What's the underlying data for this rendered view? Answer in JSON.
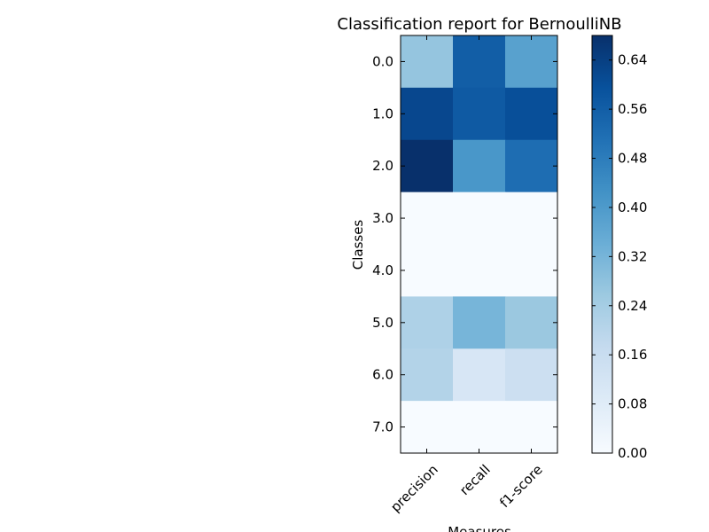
{
  "chart_data": {
    "type": "heatmap",
    "title": "Classification report for BernoulliNB",
    "xlabel": "Measures",
    "ylabel": "Classes",
    "x_categories": [
      "precision",
      "recall",
      "f1-score"
    ],
    "y_categories": [
      "0.0",
      "1.0",
      "2.0",
      "3.0",
      "4.0",
      "5.0",
      "6.0",
      "7.0"
    ],
    "values": [
      [
        0.27,
        0.56,
        0.38
      ],
      [
        0.62,
        0.57,
        0.6
      ],
      [
        0.68,
        0.41,
        0.52
      ],
      [
        0.0,
        0.0,
        0.0
      ],
      [
        0.0,
        0.0,
        0.0
      ],
      [
        0.22,
        0.32,
        0.26
      ],
      [
        0.21,
        0.11,
        0.15
      ],
      [
        0.0,
        0.0,
        0.0
      ]
    ],
    "colormap": "Blues",
    "colorbar": {
      "range": [
        0.0,
        0.68
      ],
      "ticks": [
        "0.00",
        "0.08",
        "0.16",
        "0.24",
        "0.32",
        "0.40",
        "0.48",
        "0.56",
        "0.64"
      ]
    },
    "grid": false
  }
}
